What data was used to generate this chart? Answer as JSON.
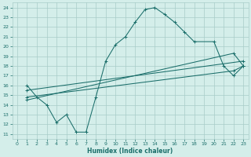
{
  "xlabel": "Humidex (Indice chaleur)",
  "xlim": [
    -0.5,
    23.5
  ],
  "ylim": [
    10.5,
    24.5
  ],
  "xticks": [
    0,
    1,
    2,
    3,
    4,
    5,
    6,
    7,
    8,
    9,
    10,
    11,
    12,
    13,
    14,
    15,
    16,
    17,
    18,
    19,
    20,
    21,
    22,
    23
  ],
  "yticks": [
    11,
    12,
    13,
    14,
    15,
    16,
    17,
    18,
    19,
    20,
    21,
    22,
    23,
    24
  ],
  "bg_color": "#d4eeea",
  "grid_color": "#a8ccc8",
  "line_color": "#1a6e6a",
  "line1_x": [
    1,
    2,
    3,
    4,
    5,
    6,
    7,
    8,
    9,
    10,
    11,
    12,
    13,
    14,
    15,
    16,
    17,
    18,
    20,
    21,
    22,
    23
  ],
  "line1_y": [
    16,
    14.8,
    14,
    12.2,
    13,
    11.2,
    11.2,
    14.8,
    18.5,
    20.2,
    21,
    22.5,
    23.8,
    24,
    23.3,
    22.5,
    21.5,
    20.5,
    20.5,
    18,
    17,
    18
  ],
  "line2_x": [
    1,
    23
  ],
  "line2_y": [
    15.5,
    18.5
  ],
  "line3_x": [
    1,
    22,
    23
  ],
  "line3_y": [
    14.5,
    19.3,
    18
  ],
  "line4_x": [
    1,
    22,
    23
  ],
  "line4_y": [
    14.8,
    17.5,
    18
  ]
}
